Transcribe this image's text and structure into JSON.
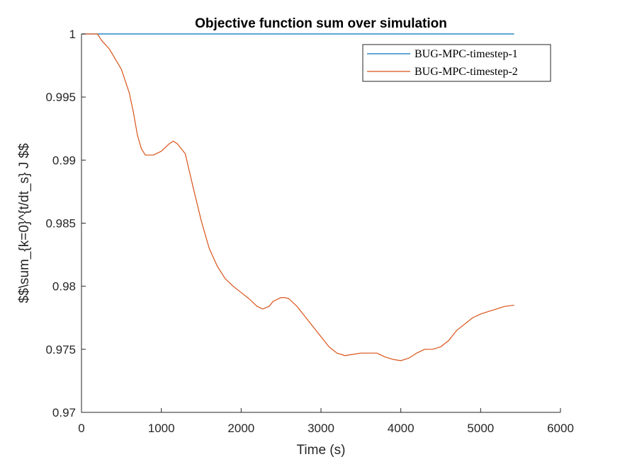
{
  "chart_data": {
    "type": "line",
    "title": "Objective function sum over simulation",
    "xlabel": "Time (s)",
    "ylabel": "$$\\sum_{k=0}^{t/dt_s} J $$",
    "xlim": [
      0,
      6000
    ],
    "ylim": [
      0.97,
      1.0
    ],
    "xticks": [
      0,
      1000,
      2000,
      3000,
      4000,
      5000,
      6000
    ],
    "xtick_labels": [
      "0",
      "1000",
      "2000",
      "3000",
      "4000",
      "5000",
      "6000"
    ],
    "yticks": [
      0.97,
      0.975,
      0.98,
      0.985,
      0.99,
      0.995,
      1.0
    ],
    "ytick_labels": [
      "0.97",
      "0.975",
      "0.98",
      "0.985",
      "0.99",
      "0.995",
      "1"
    ],
    "grid": false,
    "legend_position": "top-right",
    "series": [
      {
        "name": "BUG-MPC-timestep-1",
        "color": "#0072BD",
        "x": [
          0,
          5420
        ],
        "y": [
          1.0,
          1.0
        ]
      },
      {
        "name": "BUG-MPC-timestep-2",
        "color": "#D95319",
        "x": [
          0,
          200,
          250,
          350,
          500,
          600,
          650,
          700,
          750,
          800,
          900,
          1000,
          1100,
          1150,
          1200,
          1300,
          1400,
          1500,
          1600,
          1700,
          1800,
          1900,
          2000,
          2100,
          2200,
          2270,
          2350,
          2400,
          2500,
          2550,
          2600,
          2700,
          2800,
          2900,
          3000,
          3100,
          3200,
          3300,
          3400,
          3500,
          3700,
          3800,
          3900,
          4000,
          4100,
          4200,
          4300,
          4400,
          4500,
          4600,
          4700,
          4800,
          4900,
          5000,
          5100,
          5200,
          5300,
          5420
        ],
        "y": [
          1.0,
          1.0,
          0.9995,
          0.9988,
          0.9972,
          0.9953,
          0.9938,
          0.992,
          0.9909,
          0.9904,
          0.9904,
          0.9907,
          0.9913,
          0.9915,
          0.9913,
          0.9905,
          0.9878,
          0.9852,
          0.983,
          0.9816,
          0.9806,
          0.98,
          0.9795,
          0.979,
          0.9784,
          0.9782,
          0.9784,
          0.9788,
          0.9791,
          0.9791,
          0.979,
          0.9784,
          0.9776,
          0.9768,
          0.976,
          0.9752,
          0.9747,
          0.9745,
          0.9746,
          0.9747,
          0.9747,
          0.9744,
          0.9742,
          0.9741,
          0.9743,
          0.9747,
          0.975,
          0.975,
          0.9752,
          0.9757,
          0.9765,
          0.977,
          0.9775,
          0.9778,
          0.978,
          0.9782,
          0.9784,
          0.9785
        ]
      }
    ]
  }
}
